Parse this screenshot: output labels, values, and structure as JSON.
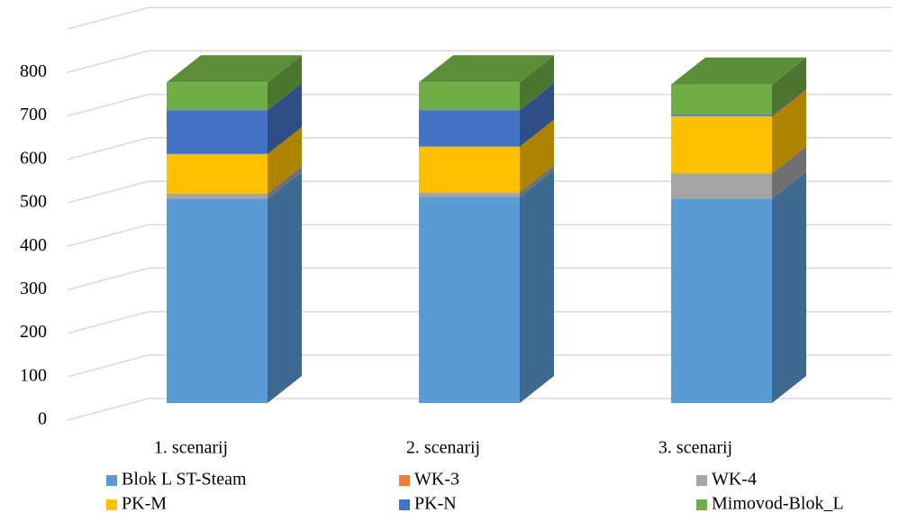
{
  "chart_data": {
    "type": "bar3d_stacked",
    "categories": [
      "1. scenarij",
      "2. scenarij",
      "3. scenarij"
    ],
    "series": [
      {
        "name": "Blok L ST-Steam",
        "color": "#5b9bd5",
        "values": [
          470,
          474,
          470
        ]
      },
      {
        "name": "WK-3",
        "color": "#ed7d31",
        "values": [
          0,
          0,
          0
        ]
      },
      {
        "name": "WK-4",
        "color": "#a5a5a5",
        "values": [
          12,
          11,
          58
        ]
      },
      {
        "name": "PK-M",
        "color": "#ffc000",
        "values": [
          91,
          105,
          132
        ]
      },
      {
        "name": "PK-N",
        "color": "#4472c4",
        "values": [
          101,
          84,
          3
        ]
      },
      {
        "name": "Mimovod-Blok_L",
        "color": "#70ad47",
        "values": [
          64,
          64,
          70
        ]
      }
    ],
    "ylim": [
      0,
      900
    ],
    "yticks": [
      0,
      100,
      200,
      300,
      400,
      500,
      600,
      700,
      800
    ],
    "grid": true
  }
}
